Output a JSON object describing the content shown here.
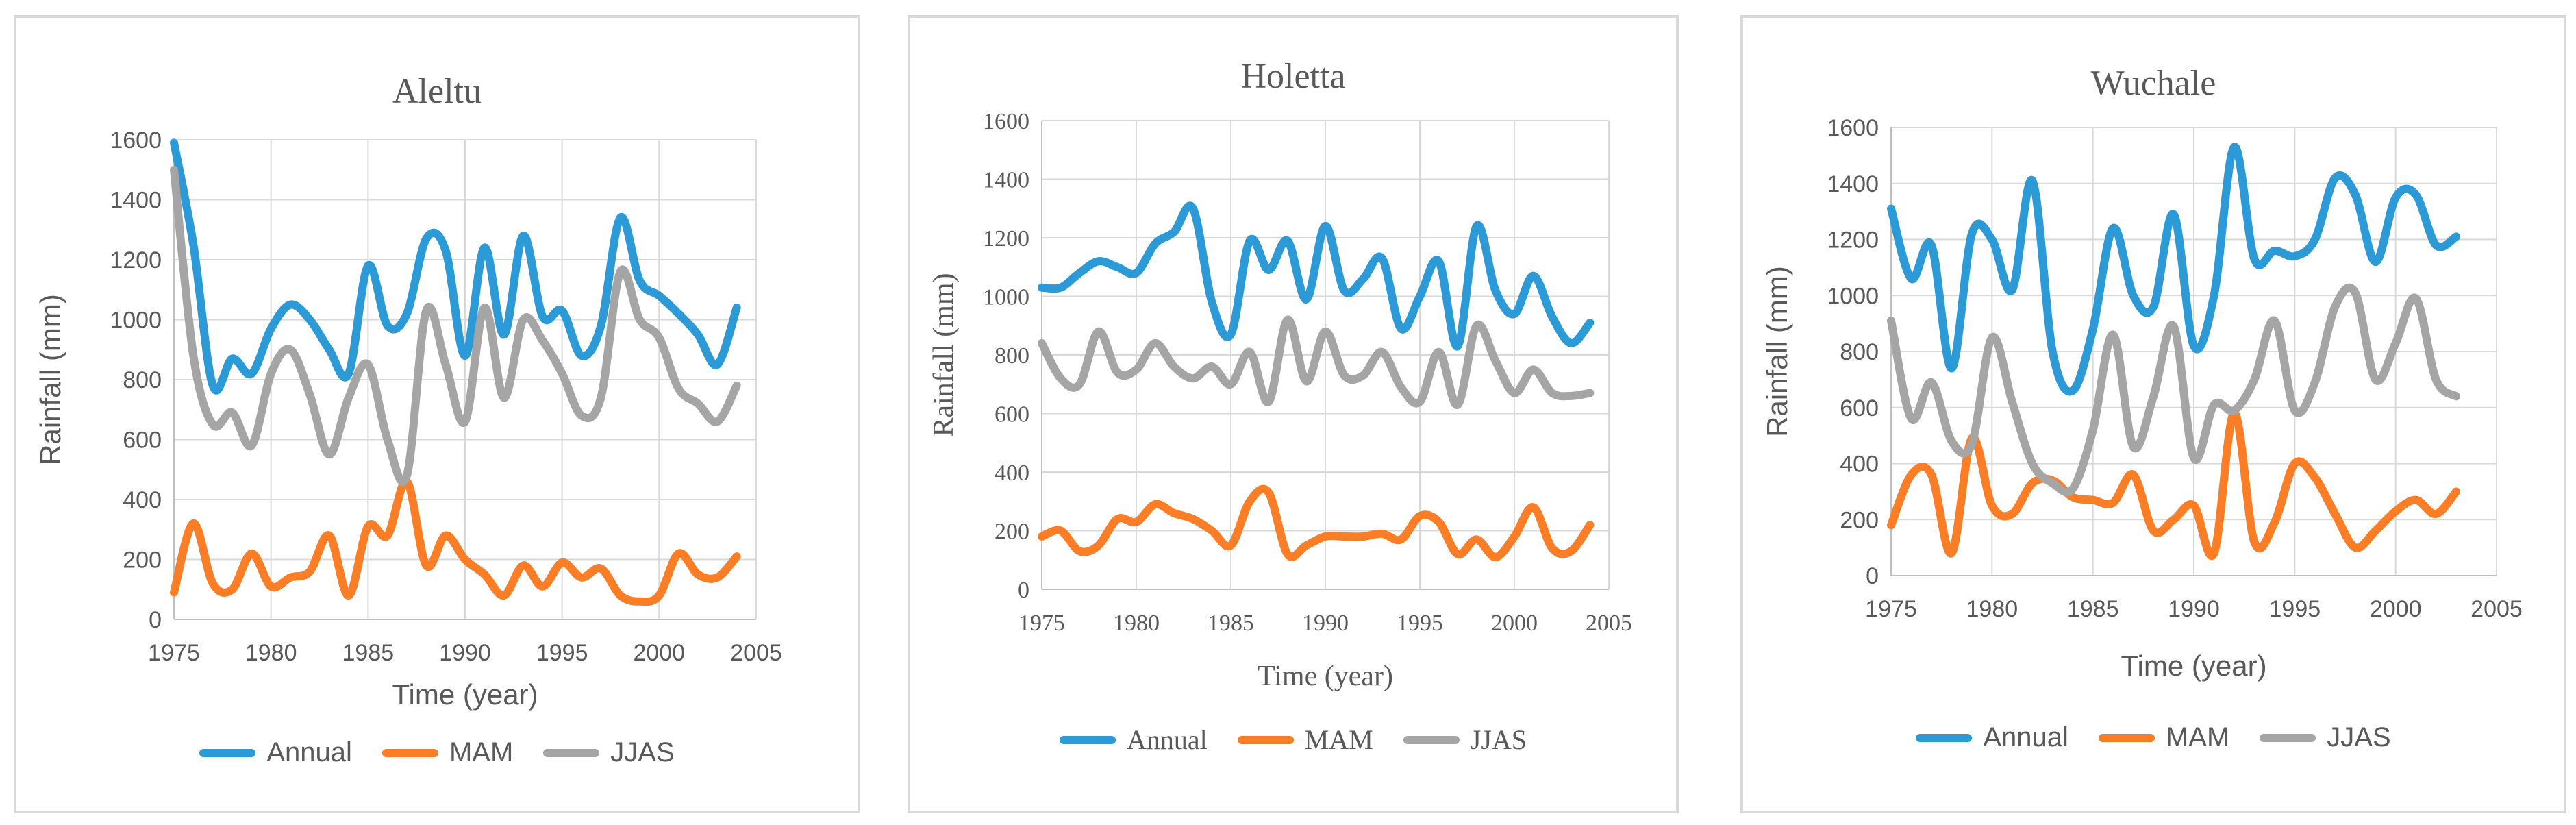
{
  "colors": {
    "Annual": "#2b9ad6",
    "MAM": "#fb7d25",
    "JJAS": "#a5a5a5",
    "grid": "#d9d9d9",
    "text": "#595959",
    "border": "#d9d9d9"
  },
  "chart_data": [
    {
      "type": "line",
      "title": "Aleltu",
      "xlabel": "Time (year)",
      "ylabel": "Rainfall (mm)",
      "xlim": [
        1975,
        2005
      ],
      "ylim": [
        0,
        1600
      ],
      "xticks": [
        "1975",
        "1980",
        "1985",
        "1990",
        "1995",
        "2000",
        "2005"
      ],
      "yticks": [
        "0",
        "200",
        "400",
        "600",
        "800",
        "1000",
        "1200",
        "1400",
        "1600"
      ],
      "legend": [
        "Annual",
        "MAM",
        "JJAS"
      ],
      "x": [
        1975,
        1976,
        1977,
        1978,
        1979,
        1980,
        1981,
        1982,
        1983,
        1984,
        1985,
        1986,
        1987,
        1988,
        1989,
        1990,
        1991,
        1992,
        1993,
        1994,
        1995,
        1996,
        1997,
        1998,
        1999,
        2000,
        2001,
        2002,
        2003,
        2004
      ],
      "series": [
        {
          "name": "Annual",
          "values": [
            1590,
            1250,
            780,
            870,
            820,
            970,
            1050,
            1000,
            900,
            820,
            1180,
            980,
            1020,
            1270,
            1230,
            880,
            1240,
            950,
            1280,
            1010,
            1030,
            880,
            980,
            1340,
            1130,
            1080,
            1020,
            950,
            850,
            1040
          ]
        },
        {
          "name": "MAM",
          "values": [
            90,
            320,
            120,
            100,
            220,
            110,
            140,
            160,
            280,
            80,
            310,
            280,
            460,
            180,
            280,
            200,
            150,
            80,
            180,
            110,
            190,
            140,
            170,
            80,
            60,
            80,
            220,
            150,
            140,
            210
          ]
        },
        {
          "name": "JJAS",
          "values": [
            1500,
            880,
            650,
            690,
            580,
            820,
            900,
            750,
            550,
            740,
            850,
            600,
            480,
            1030,
            850,
            660,
            1040,
            740,
            1000,
            930,
            820,
            680,
            740,
            1160,
            1000,
            940,
            770,
            720,
            660,
            780
          ]
        }
      ]
    },
    {
      "type": "line",
      "title": "Holetta",
      "xlabel": "Time (year)",
      "ylabel": "Rainfall (mm)",
      "xlim": [
        1975,
        2005
      ],
      "ylim": [
        0,
        1600
      ],
      "xticks": [
        "1975",
        "1980",
        "1985",
        "1990",
        "1995",
        "2000",
        "2005"
      ],
      "yticks": [
        "0",
        "200",
        "400",
        "600",
        "800",
        "1000",
        "1200",
        "1400",
        "1600"
      ],
      "legend": [
        "Annual",
        "MAM",
        "JJAS"
      ],
      "x": [
        1975,
        1976,
        1977,
        1978,
        1979,
        1980,
        1981,
        1982,
        1983,
        1984,
        1985,
        1986,
        1987,
        1988,
        1989,
        1990,
        1991,
        1992,
        1993,
        1994,
        1995,
        1996,
        1997,
        1998,
        1999,
        2000,
        2001,
        2002,
        2003,
        2004
      ],
      "series": [
        {
          "name": "Annual",
          "values": [
            1030,
            1030,
            1080,
            1120,
            1100,
            1080,
            1180,
            1220,
            1300,
            980,
            870,
            1190,
            1090,
            1190,
            990,
            1240,
            1020,
            1060,
            1130,
            890,
            1000,
            1120,
            830,
            1240,
            1020,
            940,
            1070,
            930,
            840,
            910
          ]
        },
        {
          "name": "MAM",
          "values": [
            180,
            200,
            130,
            150,
            240,
            230,
            290,
            260,
            240,
            200,
            150,
            300,
            330,
            120,
            150,
            180,
            180,
            180,
            190,
            170,
            250,
            230,
            120,
            170,
            110,
            180,
            280,
            140,
            130,
            220
          ]
        },
        {
          "name": "JJAS",
          "values": [
            840,
            720,
            700,
            880,
            740,
            750,
            840,
            760,
            720,
            760,
            700,
            810,
            640,
            920,
            710,
            880,
            730,
            730,
            810,
            690,
            640,
            810,
            630,
            900,
            780,
            670,
            750,
            670,
            660,
            670
          ]
        }
      ]
    },
    {
      "type": "line",
      "title": "Wuchale",
      "xlabel": "Time (year)",
      "ylabel": "Rainfall (mm)",
      "xlim": [
        1975,
        2005
      ],
      "ylim": [
        0,
        1600
      ],
      "xticks": [
        "1975",
        "1980",
        "1985",
        "1990",
        "1995",
        "2000",
        "2005"
      ],
      "yticks": [
        "0",
        "200",
        "400",
        "600",
        "800",
        "1000",
        "1200",
        "1400",
        "1600"
      ],
      "legend": [
        "Annual",
        "MAM",
        "JJAS"
      ],
      "x": [
        1975,
        1976,
        1977,
        1978,
        1979,
        1980,
        1981,
        1982,
        1983,
        1984,
        1985,
        1986,
        1987,
        1988,
        1989,
        1990,
        1991,
        1992,
        1993,
        1994,
        1995,
        1996,
        1997,
        1998,
        1999,
        2000,
        2001,
        2002,
        2003
      ],
      "series": [
        {
          "name": "Annual",
          "values": [
            1310,
            1060,
            1180,
            740,
            1220,
            1200,
            1020,
            1410,
            800,
            660,
            880,
            1240,
            1000,
            960,
            1290,
            820,
            1000,
            1530,
            1130,
            1160,
            1140,
            1200,
            1420,
            1360,
            1120,
            1350,
            1360,
            1180,
            1210
          ]
        },
        {
          "name": "MAM",
          "values": [
            180,
            360,
            360,
            80,
            490,
            250,
            220,
            330,
            340,
            280,
            270,
            260,
            360,
            160,
            200,
            250,
            80,
            580,
            120,
            190,
            400,
            350,
            220,
            100,
            160,
            230,
            270,
            220,
            300
          ]
        },
        {
          "name": "JJAS",
          "values": [
            910,
            560,
            690,
            480,
            470,
            850,
            620,
            400,
            330,
            310,
            520,
            860,
            460,
            640,
            890,
            420,
            610,
            590,
            700,
            910,
            590,
            690,
            960,
            1010,
            700,
            830,
            990,
            700,
            640
          ]
        }
      ]
    }
  ]
}
